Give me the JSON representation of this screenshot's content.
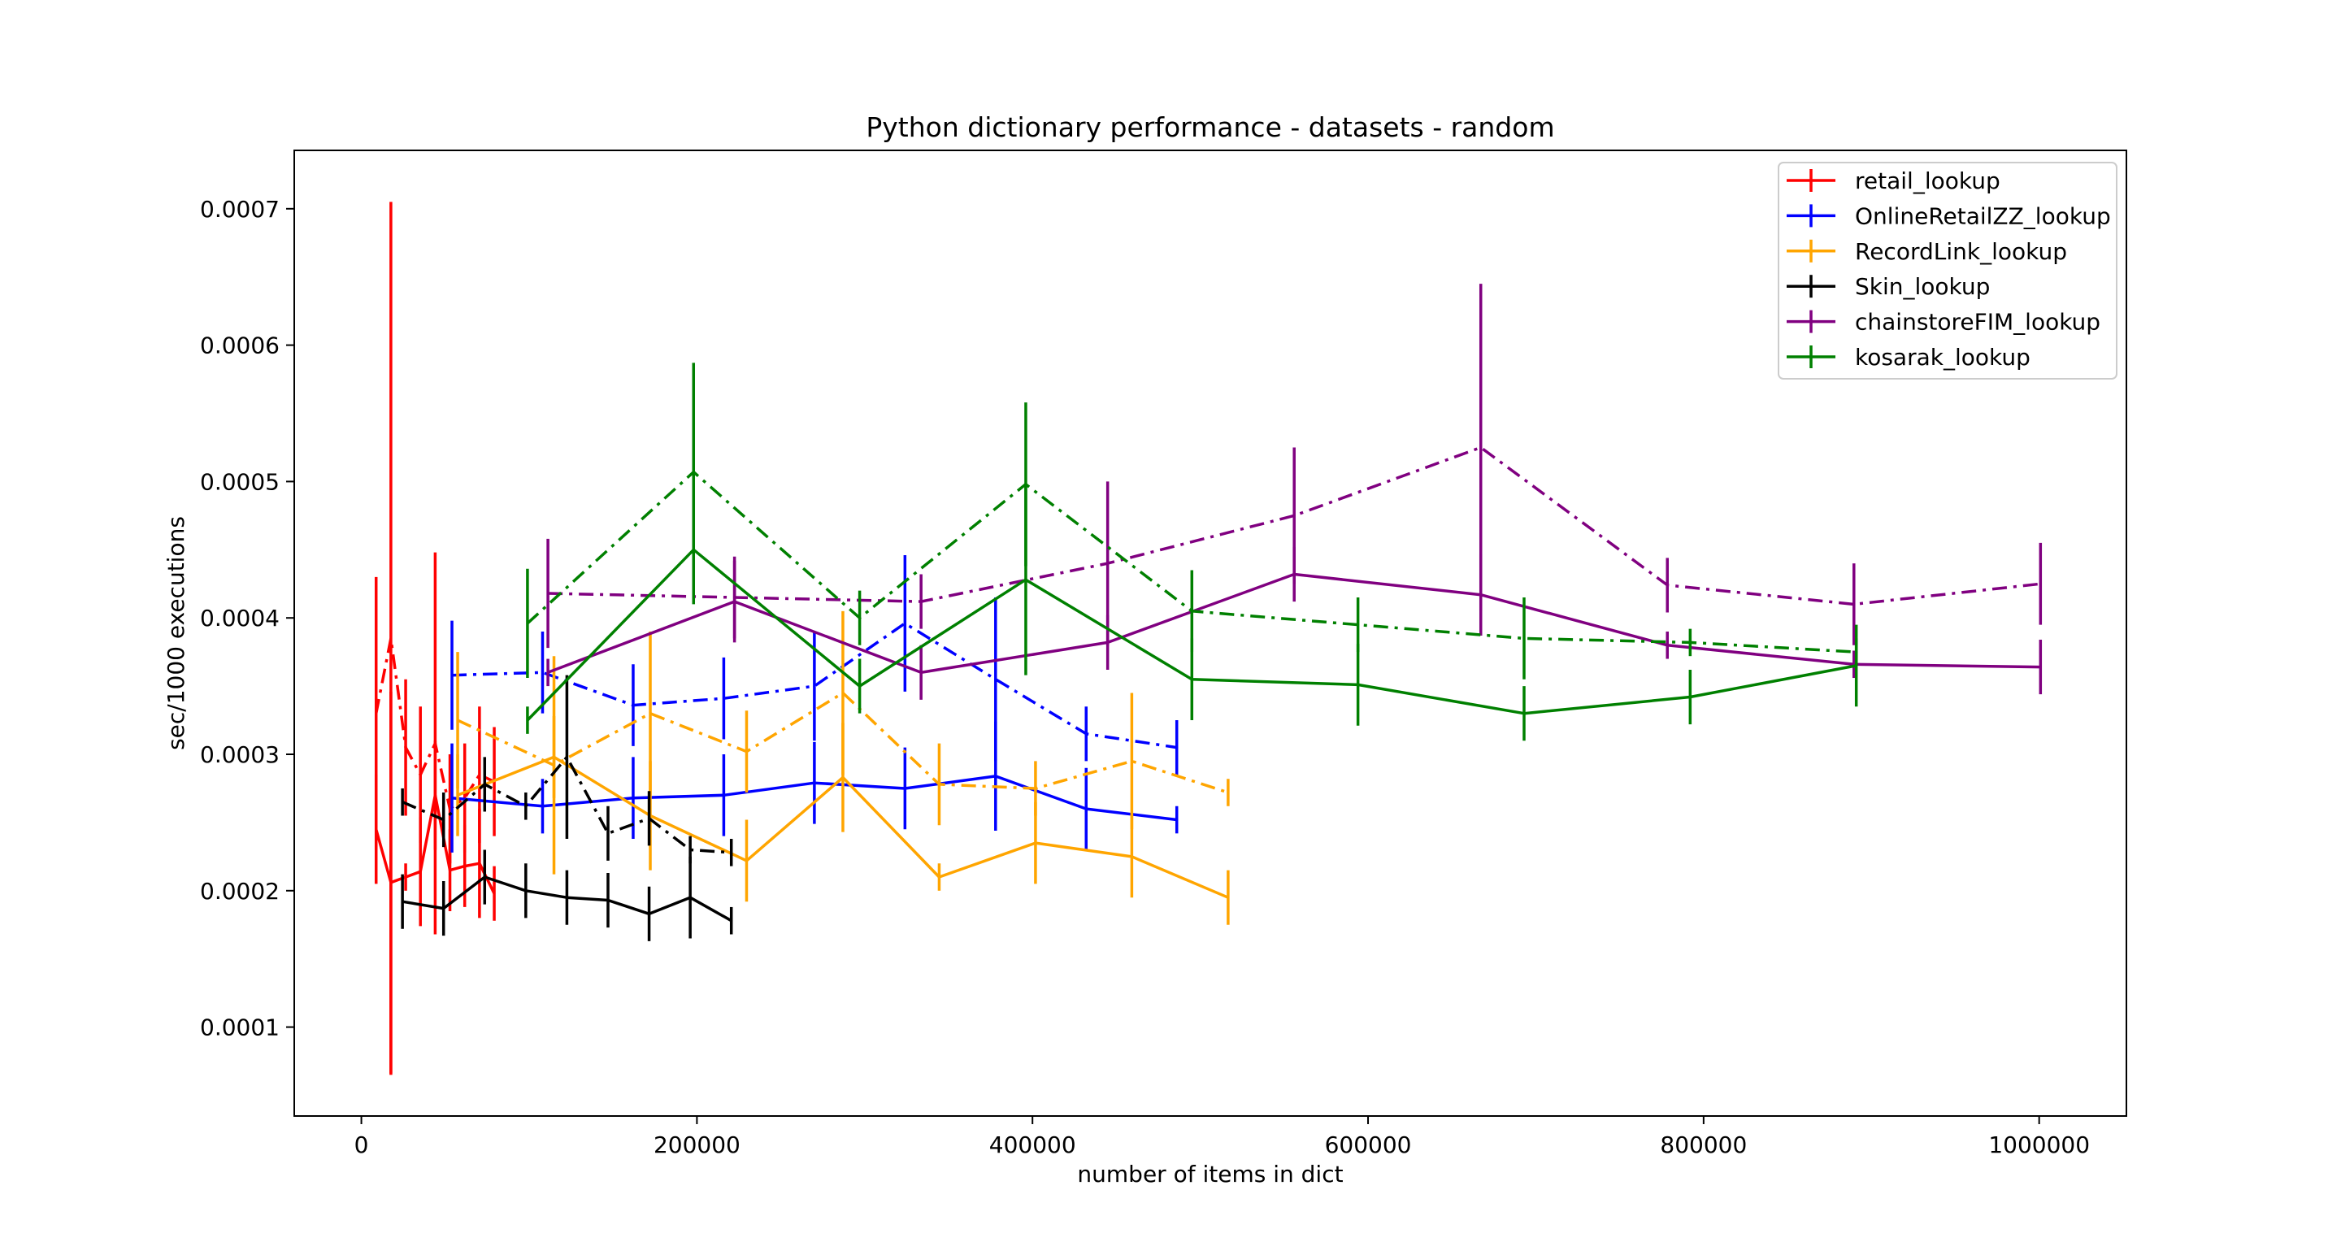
{
  "chart_data": {
    "type": "line",
    "title": "Python dictionary performance - datasets - random",
    "xlabel": "number of items in dict",
    "ylabel": "sec/1000 executions",
    "xlim": [
      -40000,
      1052000
    ],
    "ylim": [
      3.48e-05,
      0.0007428
    ],
    "xticks": [
      0,
      200000,
      400000,
      600000,
      800000,
      1000000
    ],
    "xtick_labels": [
      "0",
      "200000",
      "400000",
      "600000",
      "800000",
      "1000000"
    ],
    "yticks": [
      0.0001,
      0.0002,
      0.0003,
      0.0004,
      0.0005,
      0.0006,
      0.0007
    ],
    "ytick_labels": [
      "0.0001",
      "0.0002",
      "0.0003",
      "0.0004",
      "0.0005",
      "0.0006",
      "0.0007"
    ],
    "grid": false,
    "legend_position": "top-right",
    "series": [
      {
        "name": "retail_lookup",
        "color": "#ff0000",
        "style": "solid",
        "x": [
          8800,
          17600,
          26400,
          35200,
          44000,
          52800,
          61600,
          70400,
          79200
        ],
        "y": [
          0.000245,
          0.000206,
          0.00021,
          0.000214,
          0.00027,
          0.000215,
          0.000218,
          0.00022,
          0.000198
        ],
        "err": [
          4e-05,
          0.00014,
          1e-05,
          4e-05,
          4e-05,
          3e-05,
          3e-05,
          4e-05,
          2e-05
        ]
      },
      {
        "name": "retail_lookup",
        "color": "#ff0000",
        "style": "dashdot",
        "x": [
          8800,
          17600,
          26400,
          35200,
          44000,
          52800,
          61600,
          70400,
          79200
        ],
        "y": [
          0.00033,
          0.000385,
          0.000305,
          0.000285,
          0.000308,
          0.00026,
          0.000268,
          0.000285,
          0.00028
        ],
        "err": [
          0.0001,
          0.00032,
          5e-05,
          5e-05,
          0.00014,
          4e-05,
          4e-05,
          5e-05,
          4e-05
        ]
      },
      {
        "name": "OnlineRetailZZ_lookup",
        "color": "#0000ff",
        "style": "solid",
        "x": [
          54000,
          108000,
          162000,
          216000,
          270000,
          324000,
          378000,
          432000,
          486000
        ],
        "y": [
          0.000268,
          0.000262,
          0.000268,
          0.00027,
          0.000279,
          0.000275,
          0.000284,
          0.00026,
          0.000252
        ],
        "err": [
          4e-05,
          2e-05,
          3e-05,
          3e-05,
          3e-05,
          3e-05,
          4e-05,
          3e-05,
          1e-05
        ]
      },
      {
        "name": "OnlineRetailZZ_lookup",
        "color": "#0000ff",
        "style": "dashdot",
        "x": [
          54000,
          108000,
          162000,
          216000,
          270000,
          324000,
          378000,
          432000,
          486000
        ],
        "y": [
          0.000358,
          0.00036,
          0.000336,
          0.000341,
          0.00035,
          0.000396,
          0.000355,
          0.000315,
          0.000305
        ],
        "err": [
          4e-05,
          3e-05,
          3e-05,
          3e-05,
          4e-05,
          5e-05,
          6e-05,
          2e-05,
          2e-05
        ]
      },
      {
        "name": "RecordLink_lookup",
        "color": "#ffa500",
        "style": "solid",
        "x": [
          57400,
          114800,
          172200,
          229600,
          287000,
          344400,
          401800,
          459200,
          516600
        ],
        "y": [
          0.00027,
          0.000298,
          0.000255,
          0.000222,
          0.000283,
          0.00021,
          0.000235,
          0.000225,
          0.000195
        ],
        "err": [
          3e-05,
          3e-05,
          4e-05,
          3e-05,
          4e-05,
          1e-05,
          3e-05,
          3e-05,
          2e-05
        ]
      },
      {
        "name": "RecordLink_lookup",
        "color": "#ffa500",
        "style": "dashdot",
        "x": [
          57400,
          114800,
          172200,
          229600,
          287000,
          344400,
          401800,
          459200,
          516600
        ],
        "y": [
          0.000325,
          0.000292,
          0.00033,
          0.000302,
          0.000345,
          0.000278,
          0.000275,
          0.000295,
          0.000272
        ],
        "err": [
          5e-05,
          8e-05,
          6e-05,
          3e-05,
          6e-05,
          3e-05,
          2e-05,
          5e-05,
          1e-05
        ]
      },
      {
        "name": "Skin_lookup",
        "color": "#000000",
        "style": "solid",
        "x": [
          24500,
          49000,
          73500,
          98000,
          122500,
          147000,
          171500,
          196000,
          220500
        ],
        "y": [
          0.000192,
          0.000187,
          0.00021,
          0.0002,
          0.000195,
          0.000193,
          0.000183,
          0.000195,
          0.000178
        ],
        "err": [
          2e-05,
          2e-05,
          2e-05,
          2e-05,
          2e-05,
          2e-05,
          2e-05,
          3e-05,
          1e-05
        ]
      },
      {
        "name": "Skin_lookup",
        "color": "#000000",
        "style": "dashdot",
        "x": [
          24500,
          49000,
          73500,
          98000,
          122500,
          147000,
          171500,
          196000,
          220500
        ],
        "y": [
          0.000265,
          0.000252,
          0.000278,
          0.000262,
          0.000298,
          0.000242,
          0.000253,
          0.00023,
          0.000228
        ],
        "err": [
          1e-05,
          2e-05,
          2e-05,
          1e-05,
          6e-05,
          2e-05,
          2e-05,
          1e-05,
          1e-05
        ]
      },
      {
        "name": "chainstoreFIM_lookup",
        "color": "#800080",
        "style": "solid",
        "x": [
          111200,
          222400,
          333600,
          444800,
          556000,
          667200,
          778400,
          889600,
          1000800
        ],
        "y": [
          0.00036,
          0.000412,
          0.00036,
          0.000382,
          0.000432,
          0.000417,
          0.00038,
          0.000366,
          0.000364
        ],
        "err": [
          1e-05,
          3e-05,
          2e-05,
          2e-05,
          2e-05,
          3e-05,
          1e-05,
          1e-05,
          2e-05
        ]
      },
      {
        "name": "chainstoreFIM_lookup",
        "color": "#800080",
        "style": "dashdot",
        "x": [
          111200,
          222400,
          333600,
          444800,
          556000,
          667200,
          778400,
          889600,
          1000800
        ],
        "y": [
          0.000418,
          0.000415,
          0.000412,
          0.00044,
          0.000475,
          0.000525,
          0.000424,
          0.00041,
          0.000425
        ],
        "err": [
          4e-05,
          3e-05,
          2e-05,
          6e-05,
          5e-05,
          0.00012,
          2e-05,
          3e-05,
          3e-05
        ]
      },
      {
        "name": "kosarak_lookup",
        "color": "#008000",
        "style": "solid",
        "x": [
          99000,
          198000,
          297000,
          396000,
          495000,
          594000,
          693000,
          792000,
          891000
        ],
        "y": [
          0.000325,
          0.00045,
          0.00035,
          0.000428,
          0.000355,
          0.000351,
          0.00033,
          0.000342,
          0.000365
        ],
        "err": [
          1e-05,
          4e-05,
          2e-05,
          7e-05,
          3e-05,
          3e-05,
          2e-05,
          2e-05,
          3e-05
        ]
      },
      {
        "name": "kosarak_lookup",
        "color": "#008000",
        "style": "dashdot",
        "x": [
          99000,
          198000,
          297000,
          396000,
          495000,
          594000,
          693000,
          792000,
          891000
        ],
        "y": [
          0.000396,
          0.000507,
          0.0004,
          0.000498,
          0.000405,
          0.000395,
          0.000385,
          0.000382,
          0.000375
        ],
        "err": [
          4e-05,
          8e-05,
          2e-05,
          6e-05,
          3e-05,
          2e-05,
          3e-05,
          1e-05,
          1e-05
        ]
      }
    ],
    "legend": [
      {
        "label": "retail_lookup",
        "color": "#ff0000"
      },
      {
        "label": "OnlineRetailZZ_lookup",
        "color": "#0000ff"
      },
      {
        "label": "RecordLink_lookup",
        "color": "#ffa500"
      },
      {
        "label": "Skin_lookup",
        "color": "#000000"
      },
      {
        "label": "chainstoreFIM_lookup",
        "color": "#800080"
      },
      {
        "label": "kosarak_lookup",
        "color": "#008000"
      }
    ]
  }
}
